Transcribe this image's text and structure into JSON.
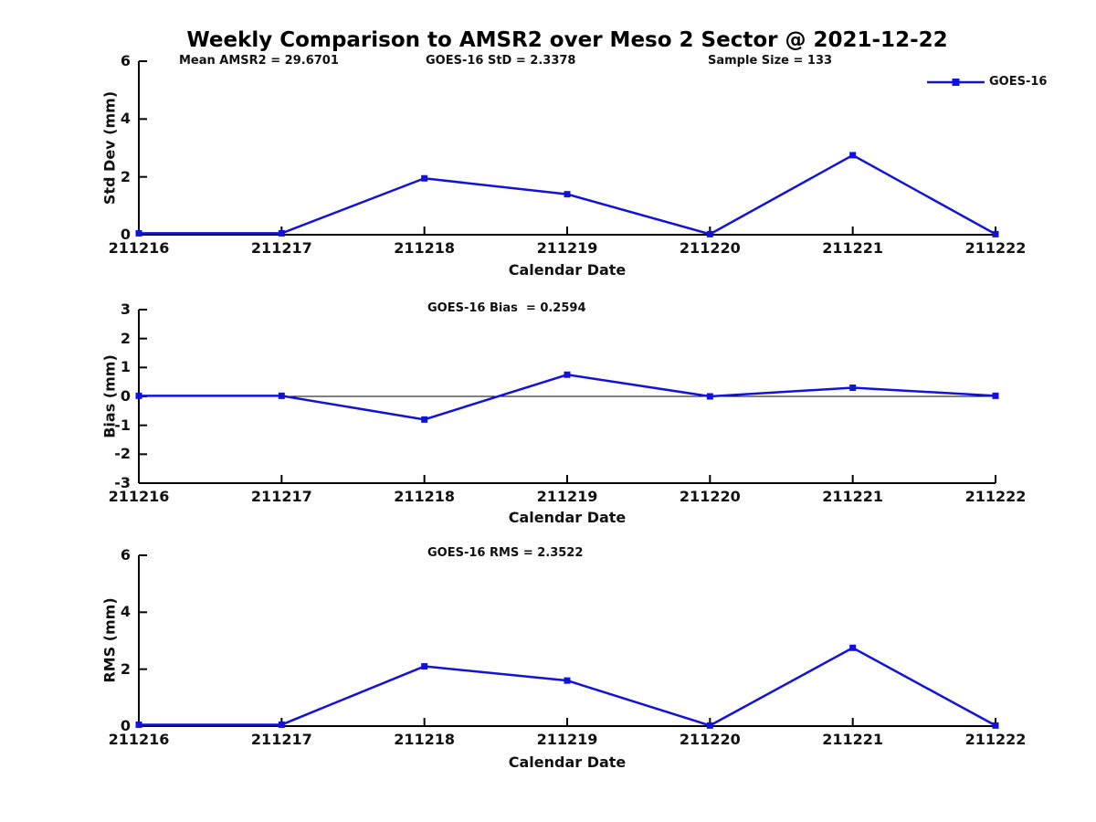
{
  "title": "Weekly Comparison to AMSR2 over Meso 2 Sector @ 2021-12-22",
  "stats": {
    "mean_amsr2": "Mean AMSR2 = 29.6701",
    "goes16_std": "GOES-16 StD = 2.3378",
    "sample_size": "Sample Size = 133"
  },
  "legend": {
    "label": "GOES-16",
    "position": "top-right",
    "marker": "square"
  },
  "colors": {
    "line": "#1212dd",
    "axis": "#000000",
    "text": "#111111",
    "background": "#ffffff"
  },
  "chart_data": [
    {
      "type": "line",
      "name": "std-dev-panel",
      "x": [
        "211216",
        "211217",
        "211218",
        "211219",
        "211220",
        "211221",
        "211222"
      ],
      "series": [
        {
          "name": "GOES-16",
          "values": [
            0.05,
            0.05,
            1.95,
            1.4,
            0.02,
            2.75,
            0.02
          ]
        }
      ],
      "xlabel": "Calendar Date",
      "ylabel": "Std Dev (mm)",
      "ylim": [
        0,
        6
      ],
      "yticks": [
        0,
        2,
        4,
        6
      ],
      "grid": false,
      "zero_line": false,
      "annotation": ""
    },
    {
      "type": "line",
      "name": "bias-panel",
      "x": [
        "211216",
        "211217",
        "211218",
        "211219",
        "211220",
        "211221",
        "211222"
      ],
      "series": [
        {
          "name": "GOES-16",
          "values": [
            0.02,
            0.02,
            -0.8,
            0.75,
            0.0,
            0.3,
            0.02
          ]
        }
      ],
      "xlabel": "Calendar Date",
      "ylabel": "Bias (mm)",
      "ylim": [
        -3,
        3
      ],
      "yticks": [
        -3,
        -2,
        -1,
        0,
        1,
        2,
        3
      ],
      "grid": false,
      "zero_line": true,
      "annotation": "GOES-16 Bias  = 0.2594"
    },
    {
      "type": "line",
      "name": "rms-panel",
      "x": [
        "211216",
        "211217",
        "211218",
        "211219",
        "211220",
        "211221",
        "211222"
      ],
      "series": [
        {
          "name": "GOES-16",
          "values": [
            0.05,
            0.05,
            2.1,
            1.6,
            0.02,
            2.75,
            0.02
          ]
        }
      ],
      "xlabel": "Calendar Date",
      "ylabel": "RMS (mm)",
      "ylim": [
        0,
        6
      ],
      "yticks": [
        0,
        2,
        4,
        6
      ],
      "grid": false,
      "zero_line": false,
      "annotation": "GOES-16 RMS = 2.3522"
    }
  ]
}
